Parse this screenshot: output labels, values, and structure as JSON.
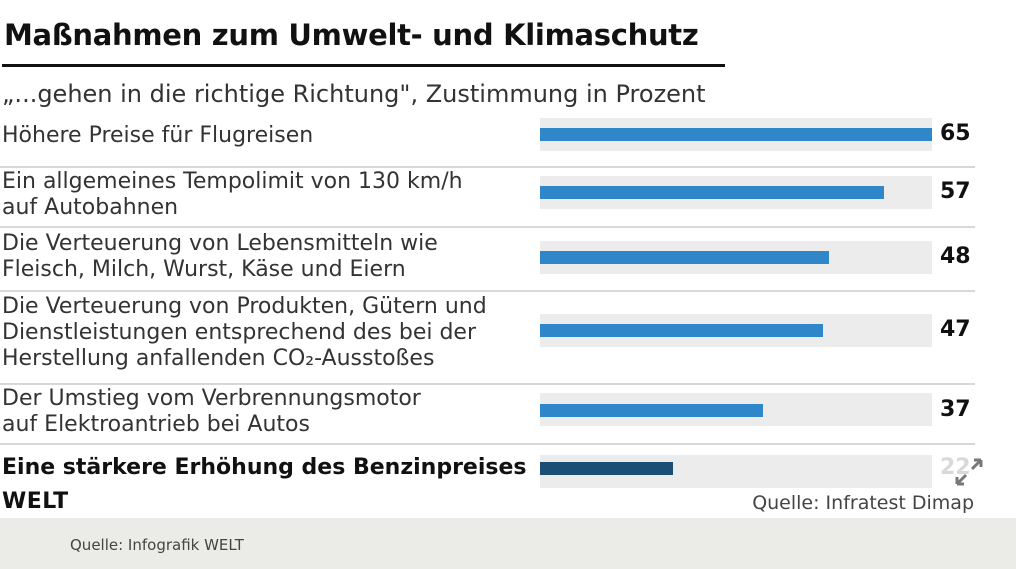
{
  "chart_data": {
    "type": "bar",
    "title": "Maßnahmen zum Umwelt- und Klimaschutz",
    "subtitle": "„...gehen in die richtige Richtung\", Zustimmung in Prozent",
    "categories": [
      "Höhere Preise für Flugreisen",
      "Ein allgemeines Tempolimit von 130 km/h\nauf Autobahnen",
      "Die Verteuerung von Lebensmitteln wie\nFleisch, Milch, Wurst, Käse und Eiern",
      "Die Verteuerung von Produkten, Gütern und\nDienstleistungen entsprechend des bei der\nHerstellung anfallenden CO₂-Ausstoßes",
      "Der Umstieg vom Verbrennungsmotor\nauf Elektroantrieb bei Autos",
      "Eine stärkere Erhöhung des Benzinpreises"
    ],
    "values": [
      65,
      57,
      48,
      47,
      37,
      22
    ],
    "value_labels": [
      "65",
      "57",
      "48",
      "47",
      "37",
      "22"
    ],
    "xlim": [
      0,
      65
    ],
    "bar_color": "#2f86c8",
    "highlight_color": "#1c4e75",
    "highlight_index": 5
  },
  "brand": {
    "logo_text": "WELT"
  },
  "source_text": "Quelle: Infratest Dimap",
  "footer": {
    "caption": "Quelle: Infografik WELT"
  },
  "icons": {
    "expand": "expand-icon"
  }
}
